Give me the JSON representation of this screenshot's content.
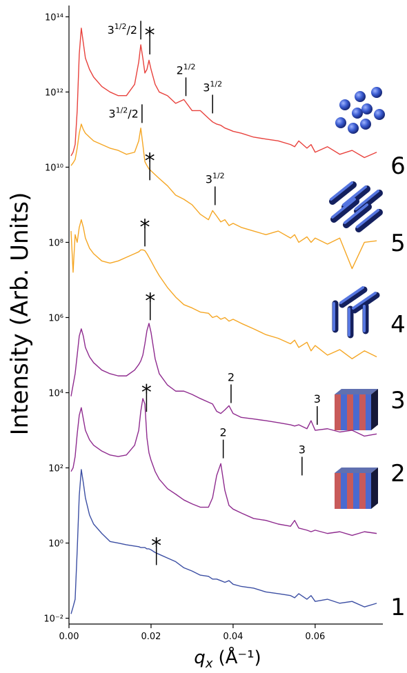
{
  "chart_data": {
    "type": "line",
    "y_label": "Intensity (Arb. Units)",
    "x_label": {
      "symbol": "q",
      "subscript": "x",
      "unit": "(Å⁻¹)"
    },
    "ylog": true,
    "xlim": [
      0,
      0.0765
    ],
    "ylim": [
      0.007,
      200000000000000.0
    ],
    "xticks": [
      {
        "value": 0,
        "label": "0.00"
      },
      0.02,
      0.04,
      0.06
    ],
    "yticks": [
      {
        "value": 0.01,
        "label": "10⁻²"
      },
      {
        "value": 1,
        "label": "10⁰"
      },
      {
        "value": 100,
        "label": "10²"
      },
      {
        "value": 10000,
        "label": "10⁴"
      },
      {
        "value": 1000000,
        "label": "10⁶"
      },
      {
        "value": 100000000,
        "label": "10⁸"
      },
      {
        "value": 10000000000,
        "label": "10¹⁰"
      },
      {
        "value": 1000000000000,
        "label": "10¹²"
      },
      {
        "value": 100000000000000,
        "label": "10¹⁴"
      }
    ],
    "x": [
      0.0005,
      0.001,
      0.0015,
      0.002,
      0.0025,
      0.003,
      0.0035,
      0.004,
      0.005,
      0.006,
      0.008,
      0.01,
      0.012,
      0.014,
      0.016,
      0.017,
      0.0175,
      0.018,
      0.0185,
      0.019,
      0.0195,
      0.02,
      0.021,
      0.022,
      0.024,
      0.026,
      0.028,
      0.03,
      0.032,
      0.034,
      0.035,
      0.036,
      0.037,
      0.038,
      0.039,
      0.04,
      0.042,
      0.045,
      0.048,
      0.051,
      0.054,
      0.055,
      0.056,
      0.058,
      0.059,
      0.06,
      0.063,
      0.066,
      0.069,
      0.072,
      0.075
    ],
    "series": [
      {
        "name": "6",
        "color": "#e8413c",
        "values": [
          20000000000.0,
          25000000000.0,
          40000000000.0,
          320000000000.0,
          10000000000000.0,
          50000000000000.0,
          20000000000000.0,
          8000000000000.0,
          4000000000000.0,
          2500000000000.0,
          1400000000000.0,
          1000000000000.0,
          800000000000.0,
          800000000000.0,
          1600000000000.0,
          6300000000000.0,
          18000000000000.0,
          8000000000000.0,
          3200000000000.0,
          4000000000000.0,
          7000000000000.0,
          4000000000000.0,
          1600000000000.0,
          1000000000000.0,
          800000000000.0,
          500000000000.0,
          630000000000.0,
          320000000000.0,
          320000000000.0,
          200000000000.0,
          160000000000.0,
          140000000000.0,
          130000000000.0,
          110000000000.0,
          100000000000.0,
          90000000000.0,
          80000000000.0,
          63000000000.0,
          56000000000.0,
          50000000000.0,
          40000000000.0,
          35000000000.0,
          50000000000.0,
          32000000000.0,
          40000000000.0,
          25000000000.0,
          35000000000.0,
          22000000000.0,
          28000000000.0,
          18000000000.0,
          25000000000.0
        ]
      },
      {
        "name": "5",
        "color": "#f5a623",
        "values": [
          11000000000.0,
          13000000000.0,
          16000000000.0,
          32000000000.0,
          80000000000.0,
          140000000000.0,
          100000000000.0,
          80000000000.0,
          63000000000.0,
          50000000000.0,
          40000000000.0,
          32000000000.0,
          28000000000.0,
          22000000000.0,
          25000000000.0,
          50000000000.0,
          110000000000.0,
          40000000000.0,
          14000000000.0,
          11000000000.0,
          9000000000.0,
          8000000000.0,
          6300000000.0,
          5000000000.0,
          3200000000.0,
          1800000000.0,
          1400000000.0,
          1000000000.0,
          560000000.0,
          400000000.0,
          700000000.0,
          500000000.0,
          350000000.0,
          400000000.0,
          280000000.0,
          320000000.0,
          250000000.0,
          200000000.0,
          160000000.0,
          200000000.0,
          130000000.0,
          160000000.0,
          100000000.0,
          140000000.0,
          100000000.0,
          130000000.0,
          90000000.0,
          130000000.0,
          20000000.0,
          100000000.0,
          110000000.0
        ]
      },
      {
        "name": "4",
        "color": "#f5a623",
        "values": [
          200000000.0,
          16000000.0,
          160000000.0,
          100000000.0,
          250000000.0,
          400000000.0,
          250000000.0,
          130000000.0,
          70000000.0,
          50000000.0,
          32000000.0,
          28000000.0,
          32000000.0,
          40000000.0,
          50000000.0,
          56000000.0,
          63000000.0,
          63000000.0,
          60000000.0,
          50000000.0,
          40000000.0,
          32000000.0,
          20000000.0,
          13000000.0,
          6300000.0,
          3500000.0,
          2200000.0,
          1800000.0,
          1400000.0,
          1300000.0,
          1000000.0,
          1100000.0,
          900000.0,
          1000000.0,
          800000.0,
          900000.0,
          700000.0,
          500000.0,
          350000.0,
          280000.0,
          200000.0,
          250000.0,
          160000.0,
          220000.0,
          130000.0,
          180000.0,
          100000.0,
          140000.0,
          80000.0,
          130000.0,
          90000.0
        ]
      },
      {
        "name": "3",
        "color": "#8e2a8e",
        "values": [
          8000.0,
          16000.0,
          32000.0,
          100000.0,
          320000.0,
          500000.0,
          320000.0,
          160000.0,
          90000.0,
          63000.0,
          40000.0,
          32000.0,
          28000.0,
          28000.0,
          40000.0,
          56000.0,
          70000.0,
          100000.0,
          200000.0,
          450000.0,
          700000.0,
          400000.0,
          80000.0,
          32000.0,
          16000.0,
          11000.0,
          11000.0,
          9000.0,
          7000.0,
          5600.0,
          5000.0,
          3200.0,
          2800.0,
          3500.0,
          4500.0,
          2800.0,
          2200.0,
          2000.0,
          1800.0,
          1600.0,
          1400.0,
          1300.0,
          1400.0,
          1100.0,
          1800.0,
          1000.0,
          1100.0,
          900,
          1000.0,
          700,
          800
        ]
      },
      {
        "name": "2",
        "color": "#8e2a8e",
        "values": [
          80,
          100,
          200,
          800,
          2500,
          4000,
          2000,
          1000,
          560,
          400,
          280,
          220,
          200,
          220,
          400,
          1000,
          3200,
          7000,
          5000,
          630,
          250,
          160,
          80,
          50,
          28,
          20,
          14,
          11,
          9,
          9,
          16,
          63,
          130,
          25,
          10,
          8,
          6.3,
          4.5,
          4,
          3.2,
          2.8,
          4,
          2.5,
          2.2,
          2,
          2.2,
          1.8,
          2,
          1.6,
          2,
          1.8
        ]
      },
      {
        "name": "1",
        "color": "#3b4ea3",
        "values": [
          0.013,
          0.02,
          0.032,
          0.63,
          18,
          90,
          40,
          16,
          5.6,
          3.2,
          1.8,
          1.1,
          1,
          0.9,
          0.83,
          0.8,
          0.76,
          0.76,
          0.76,
          0.7,
          0.7,
          0.66,
          0.56,
          0.5,
          0.4,
          0.32,
          0.22,
          0.18,
          0.14,
          0.13,
          0.11,
          0.11,
          0.1,
          0.09,
          0.1,
          0.08,
          0.07,
          0.063,
          0.05,
          0.045,
          0.04,
          0.035,
          0.045,
          0.032,
          0.04,
          0.028,
          0.032,
          0.025,
          0.028,
          0.02,
          0.025
        ]
      }
    ],
    "annotations": [
      {
        "text": "3",
        "sup": "1/2",
        "tail": "/2",
        "x": 0.0175,
        "y": 25000000000000.0,
        "side": "left"
      },
      {
        "text": "*",
        "x": 0.0197,
        "y": 10000000000000.0
      },
      {
        "text": "2",
        "sup": "1/2",
        "x": 0.0285,
        "y": 780000000000.0
      },
      {
        "text": "3",
        "sup": "1/2",
        "x": 0.035,
        "y": 270000000000.0
      },
      {
        "text": "3",
        "sup": "1/2",
        "tail": "/2",
        "x": 0.0178,
        "y": 150000000000.0,
        "side": "left"
      },
      {
        "text": "*",
        "x": 0.0197,
        "y": 4500000000.0
      },
      {
        "text": "3",
        "sup": "1/2",
        "x": 0.0356,
        "y": 980000000.0
      },
      {
        "text": "*",
        "x": 0.0185,
        "y": 78000000.0
      },
      {
        "text": "*",
        "x": 0.0198,
        "y": 850000.0
      },
      {
        "text": "2",
        "x": 0.0395,
        "y": 5300
      },
      {
        "text": "3",
        "x": 0.0605,
        "y": 1400
      },
      {
        "text": "*",
        "x": 0.0189,
        "y": 3100
      },
      {
        "text": "2",
        "x": 0.0376,
        "y": 180
      },
      {
        "text": "3",
        "x": 0.0568,
        "y": 63
      },
      {
        "text": "*",
        "x": 0.0213,
        "y": 0.26
      }
    ]
  }
}
